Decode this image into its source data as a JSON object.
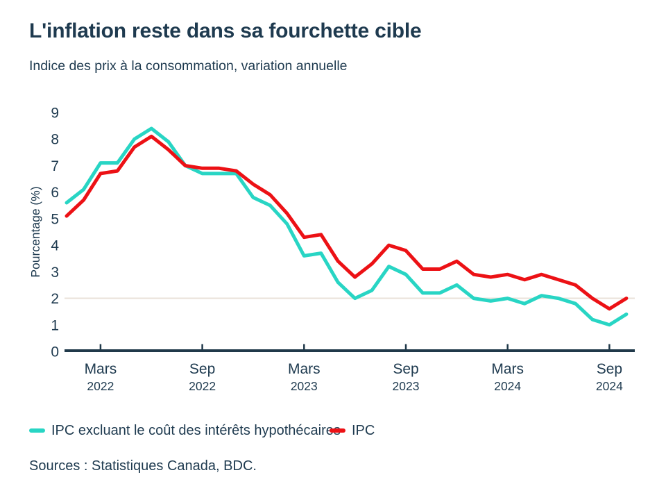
{
  "header": {
    "title": "L'inflation reste dans sa fourchette cible",
    "subtitle": "Indice des prix à la consommation, variation annuelle"
  },
  "footer": {
    "source": "Sources : Statistiques Canada, BDC."
  },
  "colors": {
    "text": "#1E3A4F",
    "axis": "#20394A",
    "grid_target_line": "#EAE1D9",
    "teal": "#28D5C4",
    "red": "#EC1115"
  },
  "chart_data": {
    "type": "line",
    "title": "L'inflation reste dans sa fourchette cible",
    "subtitle": "Indice des prix à la consommation, variation annuelle",
    "xlabel": "",
    "ylabel": "Pourcentage (%)",
    "ylim": [
      0,
      9
    ],
    "y_ticks": [
      0,
      1,
      2,
      3,
      4,
      5,
      6,
      7,
      8,
      9
    ],
    "grid": "single horizontal reference gridline at y=2 (inflation target)",
    "target_line_value": 2,
    "legend_position": "bottom",
    "x": [
      "Jan 2022",
      "Fév 2022",
      "Mars 2022",
      "Avr 2022",
      "Mai 2022",
      "Juin 2022",
      "Juil 2022",
      "Août 2022",
      "Sep 2022",
      "Oct 2022",
      "Nov 2022",
      "Déc 2022",
      "Jan 2023",
      "Fév 2023",
      "Mars 2023",
      "Avr 2023",
      "Mai 2023",
      "Juin 2023",
      "Juil 2023",
      "Août 2023",
      "Sep 2023",
      "Oct 2023",
      "Nov 2023",
      "Déc 2023",
      "Jan 2024",
      "Fév 2024",
      "Mars 2024",
      "Avr 2024",
      "Mai 2024",
      "Juin 2024",
      "Juil 2024",
      "Août 2024",
      "Sep 2024",
      "Oct 2024"
    ],
    "x_ticks": [
      {
        "label": "Mars",
        "year": "2022",
        "index": 2
      },
      {
        "label": "Sep",
        "year": "2022",
        "index": 8
      },
      {
        "label": "Mars",
        "year": "2023",
        "index": 14
      },
      {
        "label": "Sep",
        "year": "2023",
        "index": 20
      },
      {
        "label": "Mars",
        "year": "2024",
        "index": 26
      },
      {
        "label": "Sep",
        "year": "2024",
        "index": 32
      }
    ],
    "series": [
      {
        "name": "IPC excluant le coût des intérêts hypothécaires",
        "color": "#28D5C4",
        "values": [
          5.6,
          6.1,
          7.1,
          7.1,
          8.0,
          8.4,
          7.9,
          7.0,
          6.7,
          6.7,
          6.7,
          5.8,
          5.5,
          4.8,
          3.6,
          3.7,
          2.6,
          2.0,
          2.3,
          3.2,
          2.9,
          2.2,
          2.2,
          2.5,
          2.0,
          1.9,
          2.0,
          1.8,
          2.1,
          2.0,
          1.8,
          1.2,
          1.0,
          1.4
        ]
      },
      {
        "name": "IPC",
        "color": "#EC1115",
        "values": [
          5.1,
          5.7,
          6.7,
          6.8,
          7.7,
          8.1,
          7.6,
          7.0,
          6.9,
          6.9,
          6.8,
          6.3,
          5.9,
          5.2,
          4.3,
          4.4,
          3.4,
          2.8,
          3.3,
          4.0,
          3.8,
          3.1,
          3.1,
          3.4,
          2.9,
          2.8,
          2.9,
          2.7,
          2.9,
          2.7,
          2.5,
          2.0,
          1.6,
          2.0
        ]
      }
    ]
  }
}
